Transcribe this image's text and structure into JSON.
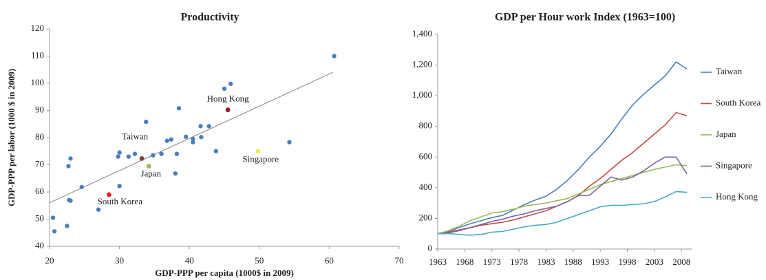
{
  "chart_data": [
    {
      "type": "scatter",
      "title": "Productivity",
      "x_label": "GDP-PPP per capita (1000$ in 2009)",
      "y_label": "GDP-PPP per labor (1000 $ in 2009)",
      "xlim": [
        20,
        70
      ],
      "xticks": [
        20,
        30,
        40,
        50,
        60,
        70
      ],
      "ylim": [
        40,
        120
      ],
      "yticks": [
        40,
        50,
        60,
        70,
        80,
        90,
        100,
        110,
        120
      ],
      "color": "#4a7ebb",
      "x": [
        20.5,
        20.7,
        22.5,
        22.7,
        23,
        22.8,
        23,
        24.6,
        27,
        29.8,
        30,
        30,
        31.3,
        32.2,
        33.8,
        34.8,
        36,
        36.8,
        37.4,
        38,
        38.2,
        38.5,
        39.5,
        40.5,
        40.5,
        41.6,
        41.7,
        42.8,
        43.8,
        45,
        45.9,
        54.3,
        60.7
      ],
      "y": [
        50.5,
        45.5,
        47.5,
        69.5,
        72.3,
        57,
        56.8,
        61.8,
        53.5,
        73,
        74.5,
        62.2,
        73,
        74,
        85.8,
        73.5,
        74,
        78.8,
        79.3,
        66.8,
        74,
        90.8,
        80.3,
        79.5,
        78.3,
        84.2,
        80.2,
        84.2,
        75,
        98,
        99.8,
        78.3,
        110
      ],
      "highlights": [
        {
          "name": "Hong Kong",
          "x": 45.5,
          "y": 90.2,
          "color": "#a0182a"
        },
        {
          "name": "Taiwan",
          "x": 33.2,
          "y": 72.3,
          "color": "#8b3a4a"
        },
        {
          "name": "Japan",
          "x": 34.2,
          "y": 69.5,
          "color": "#98b954"
        },
        {
          "name": "South Korea",
          "x": 28.5,
          "y": 59,
          "color": "#e8201e"
        },
        {
          "name": "Singapore",
          "x": 49.8,
          "y": 75,
          "color": "#e6ee5a"
        }
      ],
      "trendline": {
        "x": [
          20,
          60.5
        ],
        "y": [
          56,
          104
        ],
        "color": "#808080"
      }
    },
    {
      "type": "line",
      "title": "GDP per Hour work Index (1963=100)",
      "xlim": [
        1963,
        2010
      ],
      "xticks": [
        1963,
        1968,
        1973,
        1978,
        1983,
        1988,
        1993,
        1998,
        2003,
        2008
      ],
      "ylim": [
        0,
        1400
      ],
      "yticks": [
        0,
        200,
        400,
        600,
        800,
        {
          "value": 1000,
          "label": "1,000"
        },
        {
          "value": 1200,
          "label": "1,200"
        },
        {
          "value": 1400,
          "label": "1,400"
        }
      ],
      "x": [
        1963,
        1965,
        1967,
        1969,
        1971,
        1973,
        1975,
        1977,
        1979,
        1981,
        1983,
        1985,
        1987,
        1989,
        1991,
        1993,
        1995,
        1997,
        1999,
        2001,
        2003,
        2005,
        2007,
        2009
      ],
      "series": [
        {
          "name": "Taiwan",
          "color": "#4a7ebb",
          "values": [
            100,
            115,
            140,
            165,
            185,
            205,
            220,
            255,
            290,
            320,
            345,
            390,
            450,
            520,
            600,
            670,
            750,
            850,
            940,
            1010,
            1070,
            1130,
            1220,
            1175
          ]
        },
        {
          "name": "South Korea",
          "color": "#be4b48",
          "values": [
            100,
            110,
            125,
            140,
            155,
            165,
            175,
            190,
            210,
            230,
            250,
            280,
            310,
            350,
            410,
            460,
            520,
            580,
            630,
            690,
            750,
            810,
            890,
            870
          ]
        },
        {
          "name": "Japan",
          "color": "#98b954",
          "values": [
            100,
            120,
            150,
            185,
            210,
            235,
            245,
            260,
            280,
            290,
            300,
            315,
            330,
            360,
            390,
            420,
            440,
            460,
            480,
            500,
            520,
            535,
            550,
            545
          ]
        },
        {
          "name": "Singapore",
          "color": "#7d60a0",
          "values": [
            100,
            105,
            120,
            140,
            160,
            180,
            195,
            215,
            230,
            250,
            265,
            280,
            310,
            350,
            350,
            410,
            470,
            450,
            470,
            510,
            560,
            600,
            600,
            490
          ]
        },
        {
          "name": "Hong Kong",
          "color": "#46aac5",
          "values": [
            100,
            100,
            95,
            90,
            95,
            110,
            115,
            130,
            145,
            155,
            160,
            175,
            200,
            225,
            250,
            275,
            285,
            285,
            290,
            295,
            310,
            340,
            375,
            370
          ]
        }
      ]
    }
  ]
}
